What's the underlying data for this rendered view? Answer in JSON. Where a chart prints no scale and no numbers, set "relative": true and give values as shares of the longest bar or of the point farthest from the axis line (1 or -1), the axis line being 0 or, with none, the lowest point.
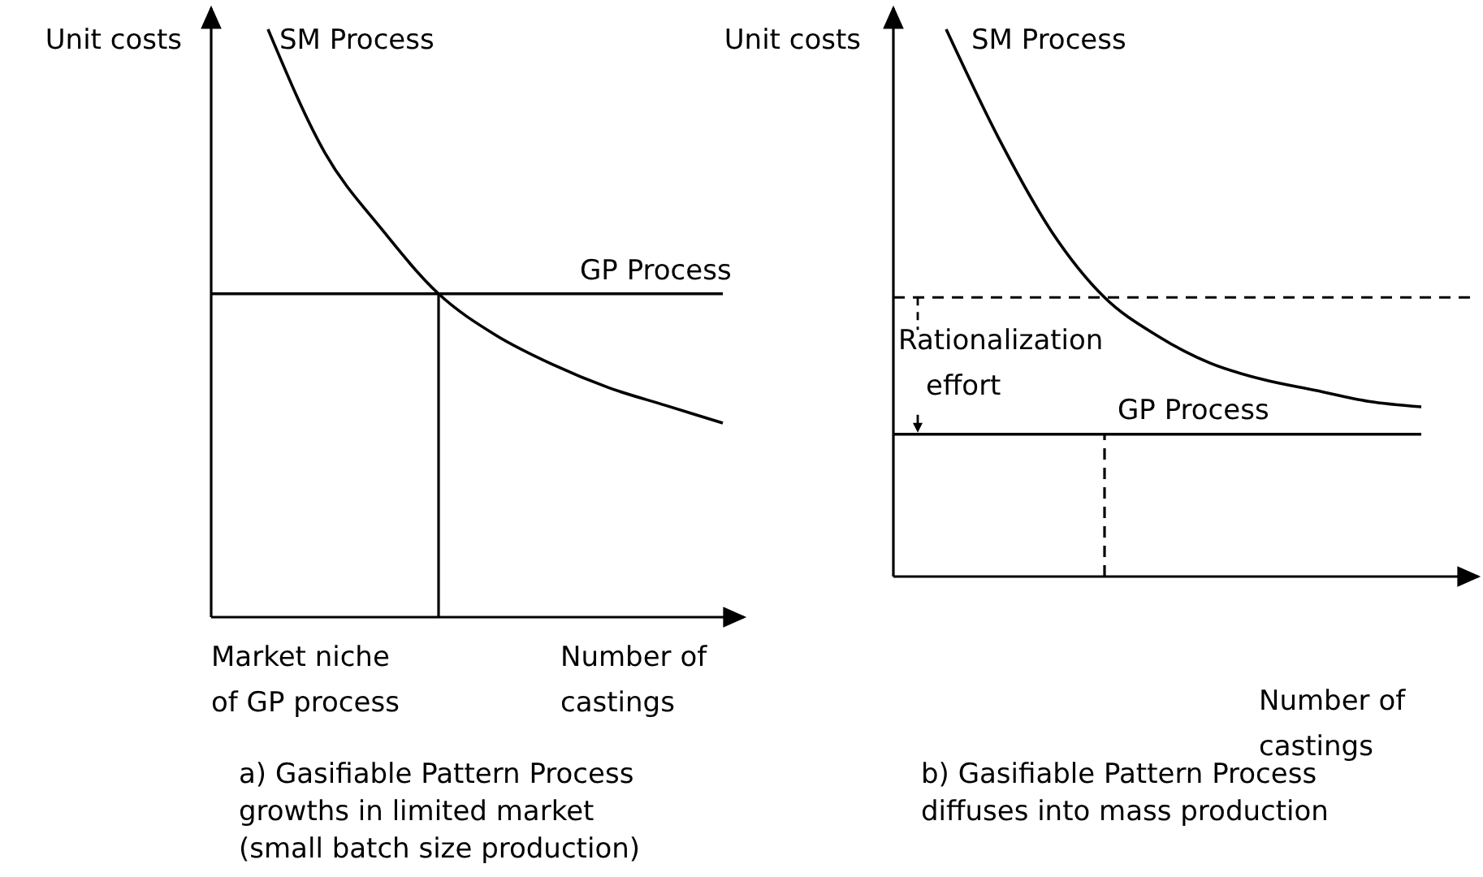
{
  "chart_data": [
    {
      "type": "line",
      "title": "a) Gasifiable Pattern Process growths in limited market (small batch size production)",
      "xlabel": "Number of castings",
      "ylabel": "Unit costs",
      "relative": true,
      "categories": [
        null,
        null,
        null,
        null,
        null,
        null,
        null,
        null,
        null,
        null
      ],
      "series": [
        {
          "name": "SM Process",
          "color": "#000000",
          "values": [
            null,
            1.0,
            0.79,
            0.66,
            0.55,
            0.48,
            0.43,
            0.39,
            0.36,
            0.33
          ]
        },
        {
          "name": "GP Process",
          "color": "#000000",
          "values": [
            0.55,
            0.55,
            0.55,
            0.55,
            0.55,
            0.55,
            0.55,
            0.55,
            0.55,
            0.55
          ]
        }
      ],
      "annotations": [
        "Market niche of GP process"
      ]
    },
    {
      "type": "line",
      "title": "b) Gasifiable Pattern Process diffuses into mass production",
      "xlabel": "Number of castings",
      "ylabel": "Unit costs",
      "relative": true,
      "categories": [
        null,
        null,
        null,
        null,
        null,
        null,
        null,
        null,
        null,
        null,
        null
      ],
      "series": [
        {
          "name": "SM Process",
          "color": "#000000",
          "values": [
            null,
            1.0,
            0.8,
            0.63,
            0.51,
            0.44,
            0.39,
            0.36,
            0.34,
            0.32,
            0.31
          ]
        },
        {
          "name": "GP Process",
          "color": "#000000",
          "values": [
            0.26,
            0.26,
            0.26,
            0.26,
            0.26,
            0.26,
            0.26,
            0.26,
            0.26,
            0.26,
            0.26
          ]
        }
      ],
      "ref_lines": [
        {
          "axis": "y",
          "value": 0.51,
          "line_style": "dashed"
        }
      ],
      "annotations": [
        "Rationalization effort"
      ]
    }
  ]
}
